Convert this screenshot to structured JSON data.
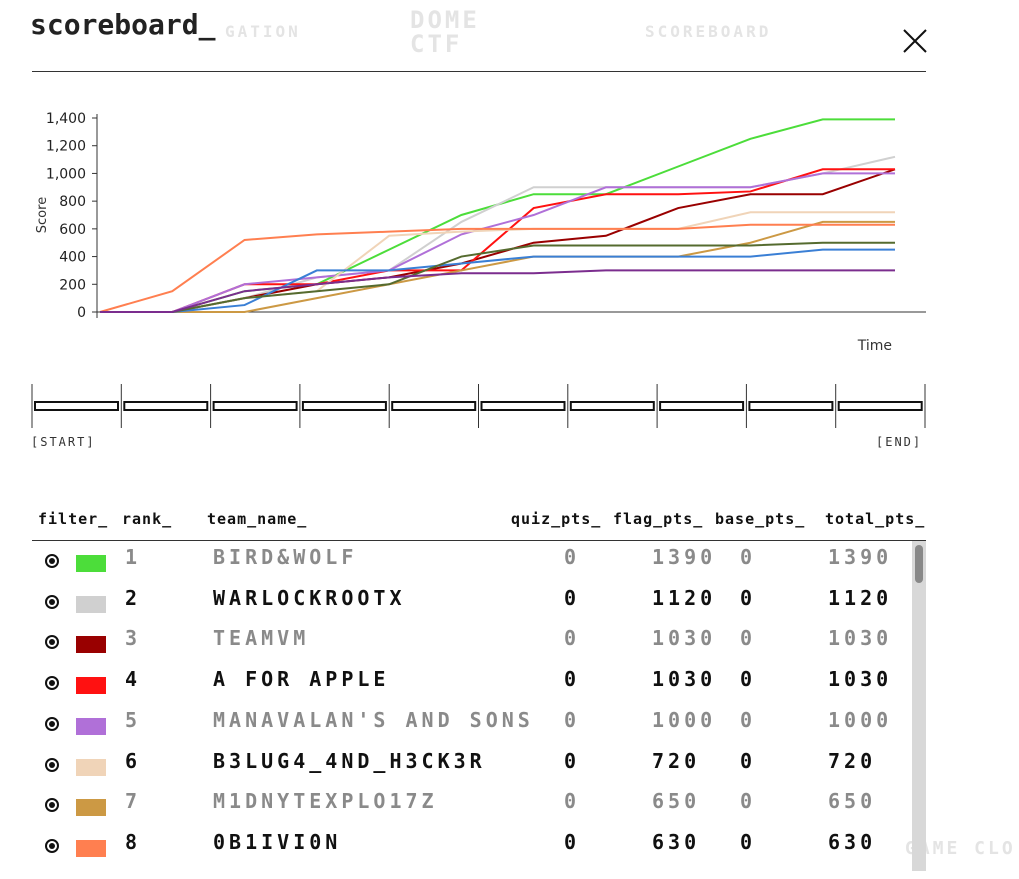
{
  "header": {
    "title": "scoreboard_"
  },
  "background": {
    "nav_left": "GATION",
    "logo": "DOME CTF",
    "nav_right": "SCOREBOARD",
    "footer": "GAME CLO"
  },
  "chart_data": {
    "type": "line",
    "y_label": "Score",
    "x_label": "Time",
    "ylim": [
      0,
      1400
    ],
    "yticks": [
      0,
      200,
      400,
      600,
      800,
      {
        "value": 1000,
        "label": "1,000"
      },
      {
        "value": 1200,
        "label": "1,200"
      },
      {
        "value": 1400,
        "label": "1,400"
      }
    ],
    "series": [
      {
        "color": "#4cdd3a",
        "values": [
          0,
          0,
          150,
          200,
          450,
          700,
          850,
          850,
          1050,
          1250,
          1390,
          1390
        ]
      },
      {
        "color": "#d0d0d0",
        "values": [
          0,
          0,
          100,
          250,
          300,
          650,
          900,
          900,
          900,
          900,
          1000,
          1120
        ]
      },
      {
        "color": "#990000",
        "values": [
          0,
          0,
          100,
          200,
          250,
          350,
          500,
          550,
          750,
          850,
          850,
          1030
        ]
      },
      {
        "color": "#ff1111",
        "values": [
          0,
          0,
          200,
          200,
          300,
          300,
          750,
          850,
          850,
          870,
          1030,
          1030
        ]
      },
      {
        "color": "#b070d8",
        "values": [
          0,
          0,
          200,
          250,
          300,
          560,
          700,
          900,
          900,
          900,
          1000,
          1000
        ]
      },
      {
        "color": "#f0d4b8",
        "values": [
          0,
          0,
          100,
          150,
          550,
          580,
          600,
          600,
          600,
          720,
          720,
          720
        ]
      },
      {
        "color": "#cc9944",
        "values": [
          0,
          0,
          0,
          100,
          200,
          300,
          400,
          400,
          400,
          500,
          650,
          650
        ]
      },
      {
        "color": "#ff7f50",
        "values": [
          0,
          150,
          520,
          560,
          580,
          600,
          600,
          600,
          600,
          630,
          630,
          630
        ]
      },
      {
        "color": "#3a7fd5",
        "values": [
          0,
          0,
          50,
          300,
          300,
          350,
          400,
          400,
          400,
          400,
          450,
          450
        ]
      },
      {
        "color": "#556b2f",
        "values": [
          0,
          0,
          100,
          150,
          200,
          400,
          480,
          480,
          480,
          480,
          500,
          500
        ]
      },
      {
        "color": "#7b2d8e",
        "values": [
          0,
          0,
          150,
          200,
          250,
          280,
          280,
          300,
          300,
          300,
          300,
          300
        ]
      }
    ]
  },
  "slider": {
    "start": "[START]",
    "end": "[END]"
  },
  "table": {
    "columns": [
      "filter_",
      "rank_",
      "team_name_",
      "quiz_pts_",
      "flag_pts_",
      "base_pts_",
      "total_pts_"
    ],
    "rows": [
      {
        "color": "#4cdd3a",
        "rank": 1,
        "team": "BIRD&WOLF",
        "quiz": 0,
        "flag": 1390,
        "base": 0,
        "total": 1390
      },
      {
        "color": "#d0d0d0",
        "rank": 2,
        "team": "WARLOCKROOTX",
        "quiz": 0,
        "flag": 1120,
        "base": 0,
        "total": 1120
      },
      {
        "color": "#990000",
        "rank": 3,
        "team": "TEAMVM",
        "quiz": 0,
        "flag": 1030,
        "base": 0,
        "total": 1030
      },
      {
        "color": "#ff1111",
        "rank": 4,
        "team": "A FOR APPLE",
        "quiz": 0,
        "flag": 1030,
        "base": 0,
        "total": 1030
      },
      {
        "color": "#b070d8",
        "rank": 5,
        "team": "MANAVALAN'S AND SONS",
        "quiz": 0,
        "flag": 1000,
        "base": 0,
        "total": 1000
      },
      {
        "color": "#f0d4b8",
        "rank": 6,
        "team": "B3LUG4_4ND_H3CK3R",
        "quiz": 0,
        "flag": 720,
        "base": 0,
        "total": 720
      },
      {
        "color": "#cc9944",
        "rank": 7,
        "team": "M1DNYTEXPLO17Z",
        "quiz": 0,
        "flag": 650,
        "base": 0,
        "total": 650
      },
      {
        "color": "#ff7f50",
        "rank": 8,
        "team": "0B1IVI0N",
        "quiz": 0,
        "flag": 630,
        "base": 0,
        "total": 630
      }
    ]
  }
}
